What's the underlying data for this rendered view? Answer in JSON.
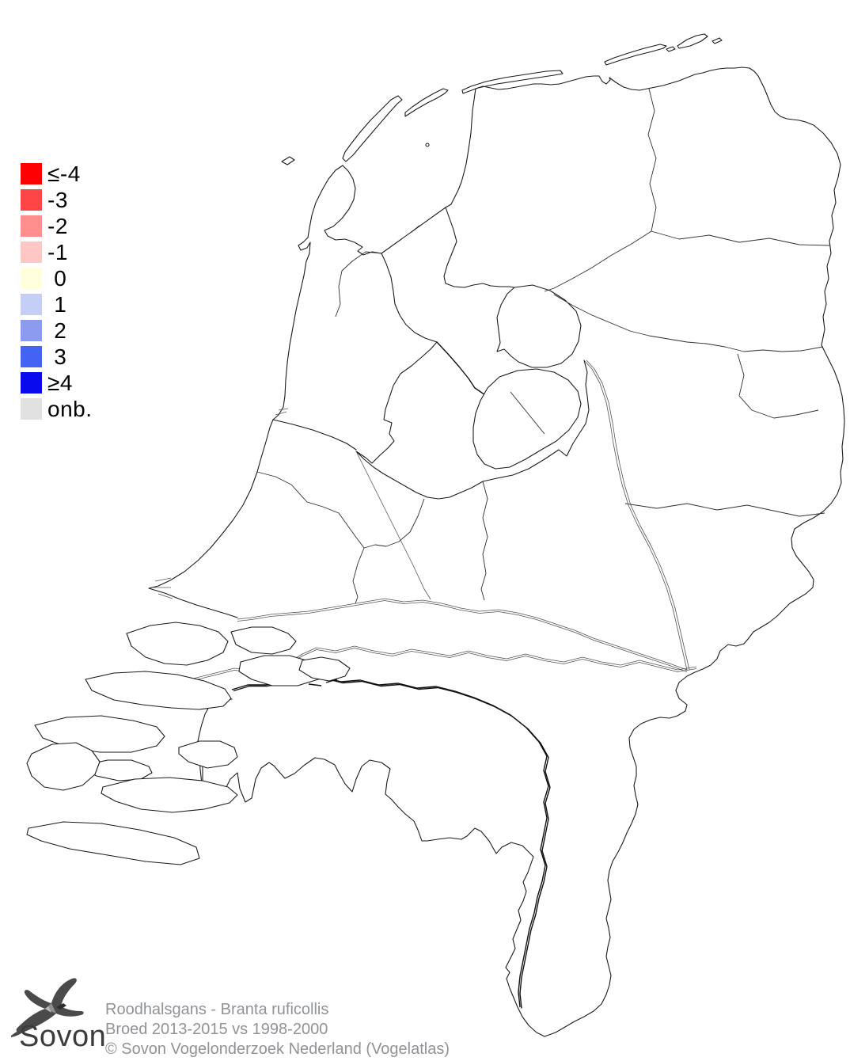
{
  "map": {
    "name": "netherlands-atlas-outline-map",
    "country": "Nederland",
    "colored_cells": []
  },
  "legend": {
    "items": [
      {
        "label": "≤-4",
        "color": "#FF0000"
      },
      {
        "label": "-3",
        "color": "#FF4545"
      },
      {
        "label": "-2",
        "color": "#FF8E8E"
      },
      {
        "label": "-1",
        "color": "#FFC6C6"
      },
      {
        "label": " 0",
        "color": "#FFFFDE"
      },
      {
        "label": " 1",
        "color": "#C5CFF5"
      },
      {
        "label": " 2",
        "color": "#8C9BF0"
      },
      {
        "label": " 3",
        "color": "#4463F2"
      },
      {
        "label": "≥4",
        "color": "#0A0AEF"
      },
      {
        "label": "onb.",
        "color": "#E1E1E1"
      }
    ]
  },
  "footer": {
    "logo_text": "Sovon",
    "logo_icon": "swallow-bird-icon",
    "title": "Roodhalsgans - Branta ruficollis",
    "subtitle": "Broed 2013-2015 vs 1998-2000",
    "copyright": "© Sovon Vogelonderzoek Nederland (Vogelatlas)"
  }
}
